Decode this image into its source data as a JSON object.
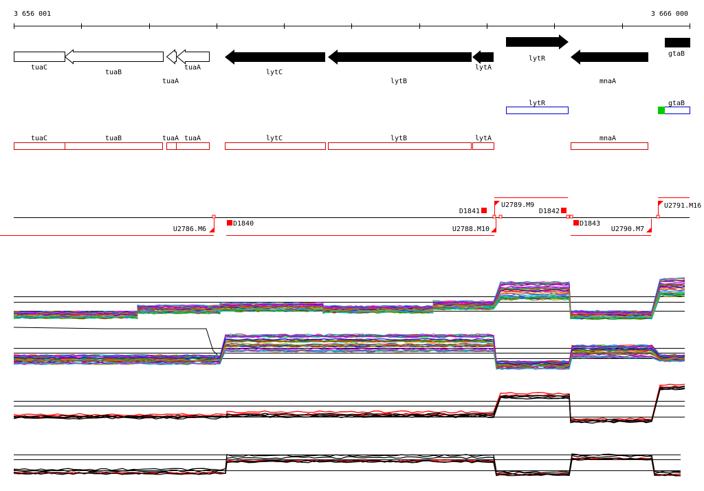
{
  "coordinates": {
    "start": "3 656 001",
    "end": "3 666 000"
  },
  "genes_track": [
    {
      "label": "tuaC",
      "style": "outline",
      "dir": "none"
    },
    {
      "label": "tuaB",
      "style": "outline",
      "dir": "left"
    },
    {
      "label": "tuaA",
      "style": "outline",
      "dir": "left"
    },
    {
      "label": "tuaA",
      "style": "outline",
      "dir": "left"
    },
    {
      "label": "lytC",
      "style": "filled",
      "dir": "left"
    },
    {
      "label": "lytB",
      "style": "filled",
      "dir": "left"
    },
    {
      "label": "lytA",
      "style": "filled",
      "dir": "left"
    },
    {
      "label": "lytR",
      "style": "filled",
      "dir": "right"
    },
    {
      "label": "mnaA",
      "style": "filled",
      "dir": "left"
    },
    {
      "label": "gtaB",
      "style": "filled",
      "dir": "none"
    }
  ],
  "blue_track": [
    {
      "label": "lytR"
    },
    {
      "label": "gtaB"
    }
  ],
  "red_track": [
    {
      "label": "tuaC"
    },
    {
      "label": "tuaB"
    },
    {
      "label": "tuaA"
    },
    {
      "label": "tuaA"
    },
    {
      "label": "lytC"
    },
    {
      "label": "lytB"
    },
    {
      "label": "lytA"
    },
    {
      "label": "mnaA"
    }
  ],
  "upshift_markers": [
    {
      "label": "D1841"
    },
    {
      "label": "U2789.M9"
    },
    {
      "label": "D1842"
    },
    {
      "label": "U2791.M16"
    },
    {
      "label": "U2786.M6"
    },
    {
      "label": "D1840"
    },
    {
      "label": "U2788.M10"
    },
    {
      "label": "D1843"
    },
    {
      "label": "U2790.M7"
    }
  ],
  "colors": {
    "outline": "#000000",
    "filled": "#000000",
    "blue_box": "#0000cc",
    "red_box": "#cc0000",
    "marker": "#ff0000",
    "green": "#00cc00"
  }
}
